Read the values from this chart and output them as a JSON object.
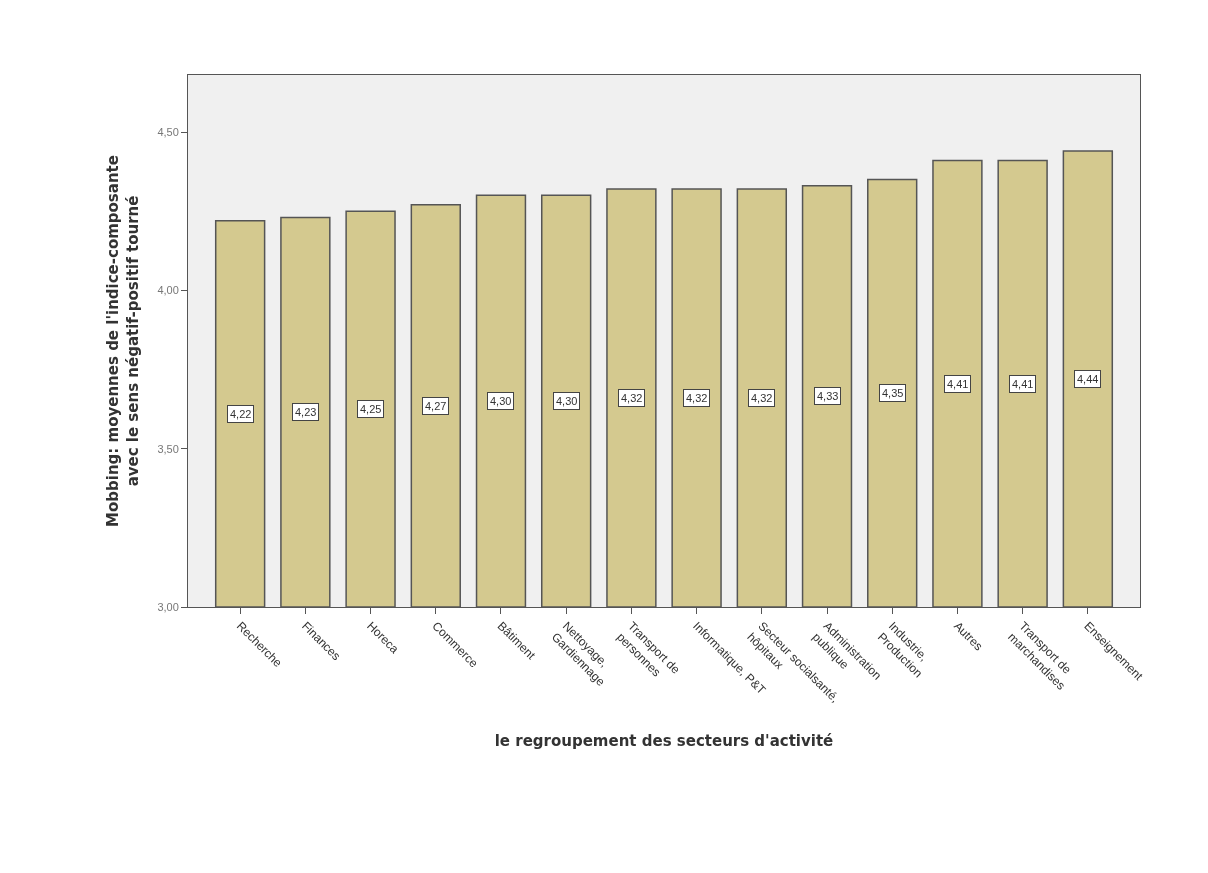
{
  "chart_data": {
    "type": "bar",
    "categories": [
      "Recherche",
      "Finances",
      "Horeca",
      "Commerce",
      "Bâtiment",
      "Nettoyage, Gardiennage",
      "Transport de personnes",
      "Informatique, P&T",
      "Secteur socialsanté, hôpitaux",
      "Administration publique",
      "Industrie, Production",
      "Autres",
      "Transport de marchandises",
      "Enseignement"
    ],
    "values": [
      4.22,
      4.23,
      4.25,
      4.27,
      4.3,
      4.3,
      4.32,
      4.32,
      4.32,
      4.33,
      4.35,
      4.41,
      4.41,
      4.44
    ],
    "value_labels": [
      "4,22",
      "4,23",
      "4,25",
      "4,27",
      "4,30",
      "4,30",
      "4,32",
      "4,32",
      "4,32",
      "4,33",
      "4,35",
      "4,41",
      "4,41",
      "4,44"
    ],
    "color": "#d4c98f",
    "xlabel": "le regroupement des secteurs d'activité",
    "ylabel": "Mobbing: moyennes de l'indice-composante avec le sens négatif-positif tourné",
    "ylim": [
      3.0,
      4.68
    ],
    "yticks": [
      {
        "value": 3.0,
        "label": "3,00"
      },
      {
        "value": 3.5,
        "label": "3,50"
      },
      {
        "value": 4.0,
        "label": "4,00"
      },
      {
        "value": 4.5,
        "label": "4,50"
      }
    ],
    "grid": false,
    "legend": false
  }
}
